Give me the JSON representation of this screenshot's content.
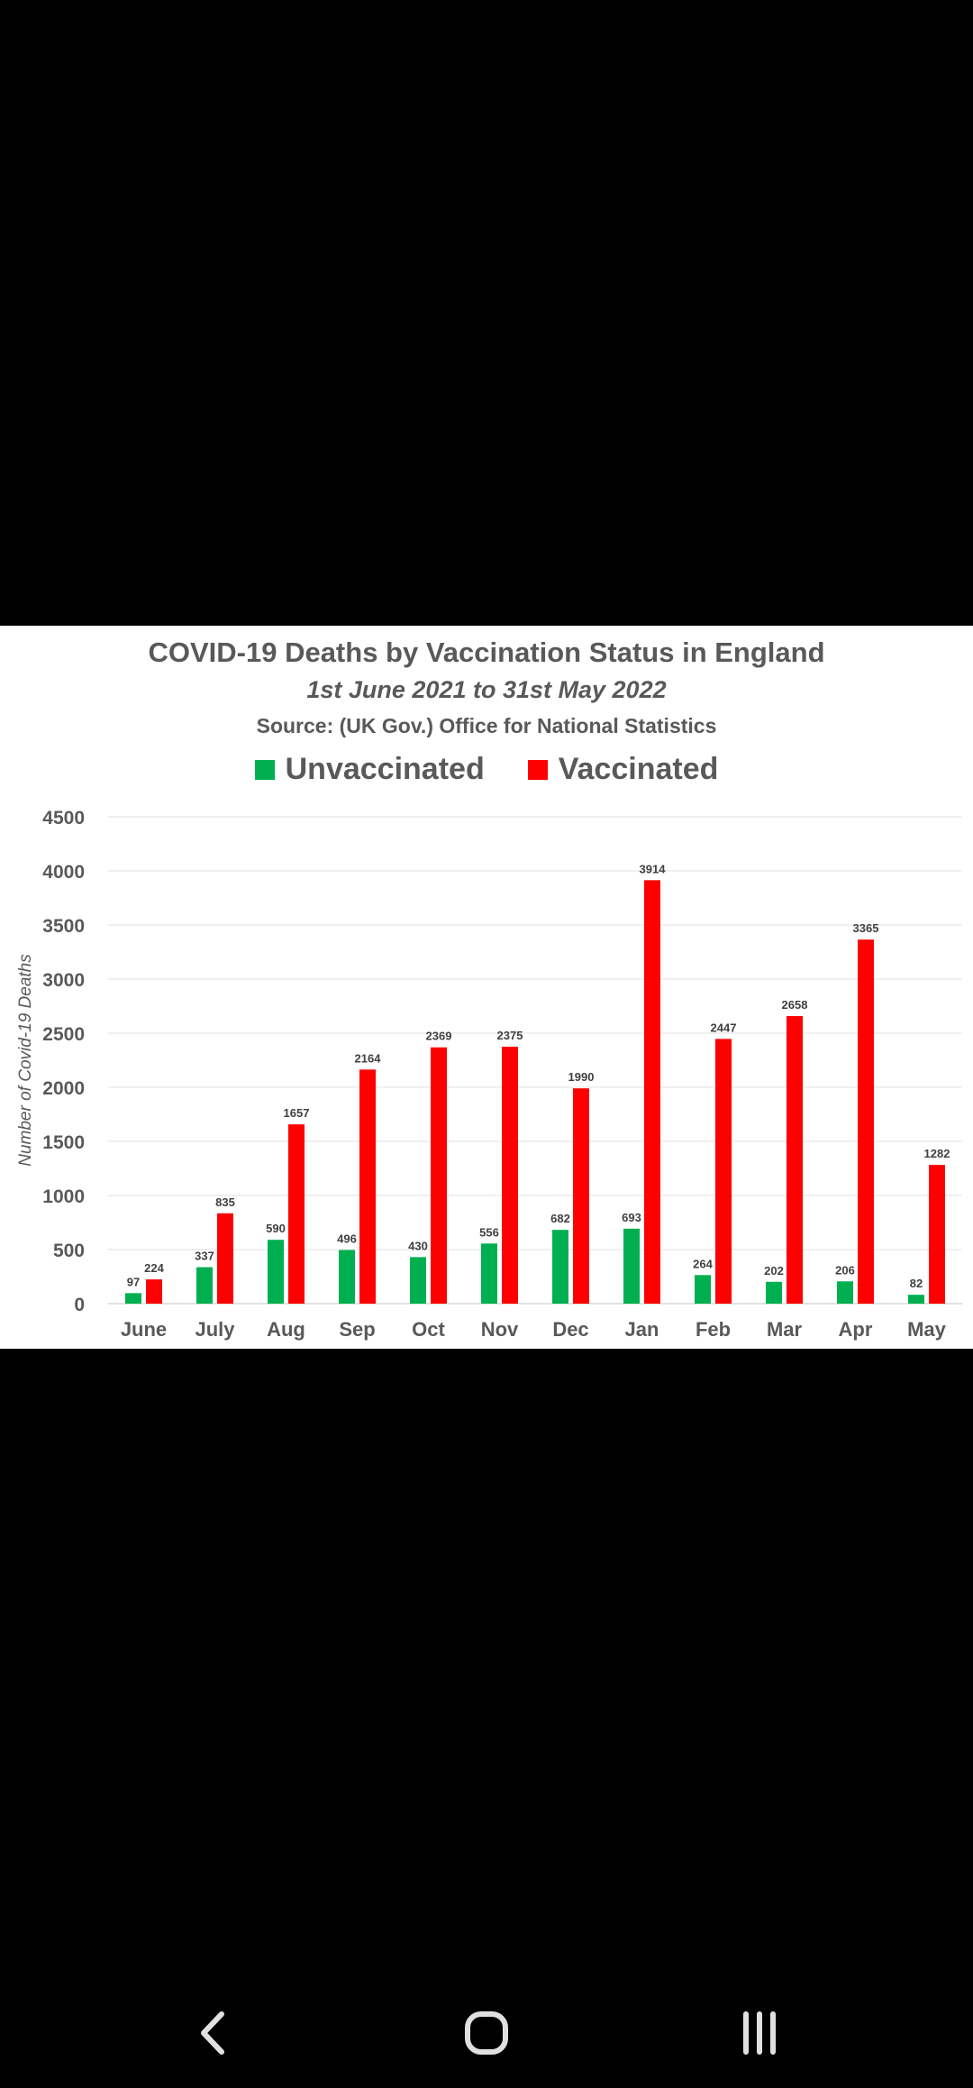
{
  "chart_data": {
    "type": "bar",
    "title": "COVID-19 Deaths by Vaccination Status in England",
    "subtitle": "1st June 2021 to 31st May 2022",
    "source": "Source: (UK Gov.) Office for National Statistics",
    "ylabel": "Number of Covid-19 Deaths",
    "xlabel": "",
    "ylim": [
      0,
      4500
    ],
    "yticks": [
      "0",
      "500",
      "1000",
      "1500",
      "2000",
      "2500",
      "3000",
      "3500",
      "4000",
      "4500"
    ],
    "grid": true,
    "legend_position": "top-center",
    "categories": [
      "June",
      "July",
      "Aug",
      "Sep",
      "Oct",
      "Nov",
      "Dec",
      "Jan",
      "Feb",
      "Mar",
      "Apr",
      "May"
    ],
    "series": [
      {
        "name": "Unvaccinated",
        "color": "#00B050",
        "values": [
          97,
          337,
          590,
          496,
          430,
          556,
          682,
          693,
          264,
          202,
          206,
          82
        ]
      },
      {
        "name": "Vaccinated",
        "color": "#FF0000",
        "values": [
          224,
          835,
          1657,
          2164,
          2369,
          2375,
          1990,
          3914,
          2447,
          2658,
          3365,
          1282
        ]
      }
    ]
  },
  "colors": {
    "screen_background": "#000000",
    "chart_background": "#ffffff",
    "text": "#595959",
    "gridline": "#ececec"
  },
  "nav": {
    "back_icon": "chevron-left-icon",
    "home_icon": "home-icon",
    "recents_icon": "recent-apps-icon"
  }
}
